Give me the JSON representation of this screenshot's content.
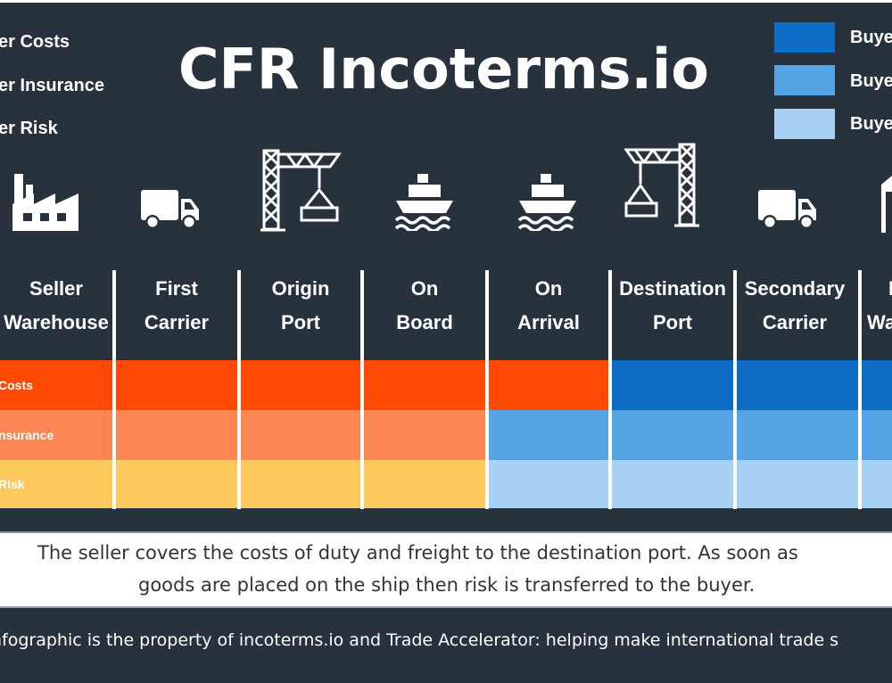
{
  "title": "CFR Incoterms.io",
  "legend_left": [
    "er Costs",
    "er Insurance",
    "er Risk"
  ],
  "legend_right": [
    {
      "label": "Buye",
      "color": "#0e6cc4"
    },
    {
      "label": "Buye",
      "color": "#55a5e4"
    },
    {
      "label": "Buye",
      "color": "#a8d1f5"
    }
  ],
  "icons": [
    "factory-icon",
    "truck-icon",
    "crane-icon",
    "ship-icon",
    "ship-icon",
    "crane-icon",
    "truck-icon",
    "warehouse-icon"
  ],
  "stages": [
    {
      "line1": "Seller",
      "line2": "Warehouse"
    },
    {
      "line1": "First",
      "line2": "Carrier"
    },
    {
      "line1": "Origin",
      "line2": "Port"
    },
    {
      "line1": "On",
      "line2": "Board"
    },
    {
      "line1": "On",
      "line2": "Arrival"
    },
    {
      "line1": "Destination",
      "line2": "Port"
    },
    {
      "line1": "Secondary",
      "line2": "Carrier"
    },
    {
      "line1": "I",
      "line2": "Wa"
    }
  ],
  "rows": [
    {
      "label": "Costs",
      "responsibility": [
        "seller",
        "seller",
        "seller",
        "seller",
        "seller",
        "buyer",
        "buyer",
        "buyer"
      ]
    },
    {
      "label": "nsurance",
      "responsibility": [
        "seller",
        "seller",
        "seller",
        "seller",
        "buyer",
        "buyer",
        "buyer",
        "buyer"
      ]
    },
    {
      "label": "Risk",
      "responsibility": [
        "seller",
        "seller",
        "seller",
        "seller",
        "buyer",
        "buyer",
        "buyer",
        "buyer"
      ]
    }
  ],
  "colors": {
    "background": "#28323d",
    "seller_costs": "#ff4a06",
    "seller_insurance": "#fd8754",
    "seller_risk": "#fdc95d",
    "buyer_costs": "#0e6cc4",
    "buyer_insurance": "#55a5e4",
    "buyer_risk": "#a8d1f5"
  },
  "description": {
    "line1": "The seller covers the costs of duty and freight to the destination port. As soon as",
    "line2": "goods are placed on the ship then risk is transferred to the buyer."
  },
  "footer": "nfographic is the property of incoterms.io and Trade Accelerator: helping make international trade s"
}
